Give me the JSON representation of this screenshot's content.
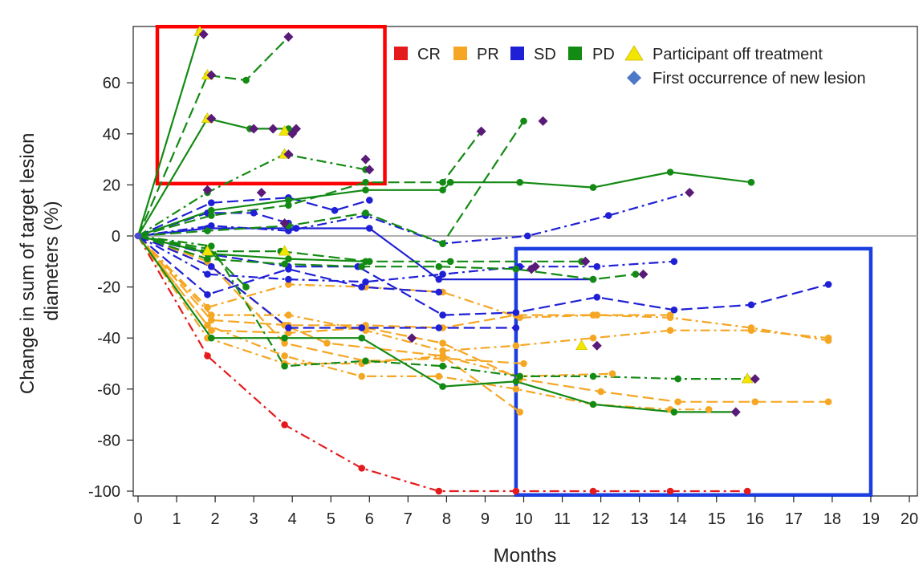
{
  "chart_data": {
    "type": "line",
    "xlabel": "Months",
    "ylabel_lines": [
      "Change in sum of target lesion",
      "diameters (%)"
    ],
    "xlim": [
      0,
      20
    ],
    "ylim": [
      -100,
      80
    ],
    "x_ticks": [
      "0",
      "1",
      "2",
      "3",
      "4",
      "5",
      "6",
      "7",
      "8",
      "9",
      "10",
      "11",
      "12",
      "13",
      "14",
      "15",
      "16",
      "17",
      "18",
      "19",
      "20"
    ],
    "y_ticks": [
      "60",
      "40",
      "20",
      "0",
      "-20",
      "-40",
      "-60",
      "-80",
      "-100"
    ],
    "reference_line_y": 0,
    "legend": {
      "placement": "top-right",
      "response_items": [
        {
          "label": "CR",
          "color": "#e41a1c"
        },
        {
          "label": "PR",
          "color": "#f5a623"
        },
        {
          "label": "SD",
          "color": "#1f1fd6"
        },
        {
          "label": "PD",
          "color": "#138a13"
        }
      ],
      "off_treatment_label": "Participant off treatment",
      "off_treatment_color": "#f2e600",
      "new_lesion_label": "First occurrence of new lesion",
      "new_lesion_color": "#4e79c7",
      "new_lesion_plot_color": "#5a1a78"
    },
    "highlight_boxes": [
      {
        "color": "#ff0000",
        "x_range": [
          0.5,
          6.4
        ],
        "y_range": [
          20.5,
          82
        ]
      },
      {
        "color": "#1a3ee0",
        "x_range": [
          9.8,
          19.0
        ],
        "y_range": [
          -5,
          -101.5
        ]
      }
    ],
    "series": [
      {
        "group": "CR",
        "dash": "dashdot",
        "points": [
          [
            0,
            0
          ],
          [
            1.8,
            -47
          ],
          [
            3.8,
            -74
          ],
          [
            5.8,
            -91
          ],
          [
            7.8,
            -100
          ],
          [
            9.8,
            -100
          ],
          [
            11.8,
            -100
          ],
          [
            13.8,
            -100
          ],
          [
            15.8,
            -100
          ]
        ]
      },
      {
        "group": "PR",
        "dash": "dashdot",
        "points": [
          [
            0,
            0
          ],
          [
            1.8,
            -35
          ],
          [
            3.8,
            -47
          ],
          [
            5.8,
            -55
          ],
          [
            7.8,
            -55
          ],
          [
            9.8,
            -60
          ],
          [
            11.8,
            -66
          ],
          [
            13.8,
            -68
          ],
          [
            14.8,
            -68
          ]
        ]
      },
      {
        "group": "PR",
        "dash": "dash",
        "points": [
          [
            0,
            0
          ],
          [
            1.9,
            -37
          ],
          [
            3.9,
            -38
          ],
          [
            5.9,
            -36
          ],
          [
            7.9,
            -42
          ],
          [
            9.9,
            -56
          ],
          [
            12.0,
            -61
          ],
          [
            14.0,
            -65
          ],
          [
            16.0,
            -65
          ],
          [
            17.9,
            -65
          ]
        ]
      },
      {
        "group": "PR",
        "dash": "dashdot",
        "points": [
          [
            0,
            0
          ],
          [
            1.8,
            -40
          ],
          [
            3.8,
            -50
          ],
          [
            5.8,
            -50
          ],
          [
            7.9,
            -47
          ],
          [
            9.9,
            -55
          ],
          [
            12.3,
            -54
          ]
        ]
      },
      {
        "group": "PR",
        "dash": "dash",
        "points": [
          [
            0,
            0
          ],
          [
            1.9,
            -33
          ],
          [
            3.9,
            -35
          ],
          [
            5.9,
            -35
          ],
          [
            7.9,
            -36
          ],
          [
            9.8,
            -31
          ],
          [
            11.8,
            -31
          ],
          [
            13.8,
            -31
          ]
        ]
      },
      {
        "group": "PR",
        "dash": "dashdot",
        "points": [
          [
            0,
            0
          ],
          [
            1.9,
            -31
          ],
          [
            3.9,
            -31
          ],
          [
            5.9,
            -37
          ],
          [
            7.9,
            -45
          ],
          [
            9.8,
            -43
          ],
          [
            11.8,
            -40
          ],
          [
            13.8,
            -37
          ],
          [
            15.9,
            -37
          ],
          [
            17.9,
            -40
          ]
        ]
      },
      {
        "group": "PR",
        "dash": "dashdot",
        "points": [
          [
            0,
            0
          ],
          [
            1.8,
            -28
          ],
          [
            3.9,
            -19
          ],
          [
            5.9,
            -20
          ],
          [
            7.9,
            -22
          ],
          [
            9.9,
            -32
          ],
          [
            11.9,
            -31
          ],
          [
            13.8,
            -32
          ],
          [
            15.9,
            -36
          ],
          [
            17.9,
            -41
          ]
        ]
      },
      {
        "group": "PR",
        "dash": "dash",
        "points": [
          [
            0,
            0
          ],
          [
            1.9,
            -12
          ],
          [
            3.8,
            -35
          ],
          [
            4.9,
            -42
          ],
          [
            7.9,
            -47
          ],
          [
            9.9,
            -69
          ]
        ]
      },
      {
        "group": "PR",
        "dash": "dash",
        "points": [
          [
            0,
            0
          ],
          [
            1.8,
            -10
          ],
          [
            3.8,
            -42
          ],
          [
            5.9,
            -49
          ],
          [
            7.9,
            -48
          ],
          [
            10.0,
            -50
          ]
        ]
      },
      {
        "group": "SD",
        "dash": "dash",
        "points": [
          [
            0,
            0
          ],
          [
            1.8,
            -7
          ],
          [
            3.9,
            -12
          ],
          [
            5.7,
            -12
          ],
          [
            7.9,
            -31
          ],
          [
            9.8,
            -30
          ],
          [
            11.9,
            -24
          ],
          [
            13.9,
            -29
          ],
          [
            15.9,
            -27
          ],
          [
            17.9,
            -19
          ]
        ]
      },
      {
        "group": "SD",
        "dash": "dash",
        "points": [
          [
            0,
            0
          ],
          [
            1.9,
            -12
          ],
          [
            3.9,
            -36
          ],
          [
            5.8,
            -36
          ],
          [
            7.8,
            -36
          ],
          [
            9.8,
            -36
          ]
        ]
      },
      {
        "group": "SD",
        "dash": "dashdot",
        "points": [
          [
            0,
            0
          ],
          [
            1.8,
            -15
          ],
          [
            3.9,
            -17
          ],
          [
            5.9,
            -18
          ],
          [
            7.9,
            -15
          ],
          [
            9.9,
            -12
          ],
          [
            11.9,
            -12
          ],
          [
            13.9,
            -10
          ]
        ]
      },
      {
        "group": "SD",
        "dash": "dash",
        "points": [
          [
            0,
            0
          ],
          [
            1.8,
            -23
          ],
          [
            3.9,
            -13
          ],
          [
            5.8,
            -20
          ],
          [
            7.8,
            -22
          ]
        ]
      },
      {
        "group": "SD",
        "dash": "dashdot",
        "points": [
          [
            0,
            0
          ],
          [
            1.9,
            4
          ],
          [
            3.9,
            2
          ],
          [
            5.9,
            8
          ],
          [
            7.9,
            -3
          ],
          [
            10.1,
            0
          ],
          [
            12.2,
            8
          ],
          [
            14.3,
            17
          ]
        ]
      },
      {
        "group": "SD",
        "dash": "solid",
        "points": [
          [
            0,
            0
          ],
          [
            1.8,
            3
          ],
          [
            3.9,
            3
          ],
          [
            6.0,
            3
          ],
          [
            7.8,
            -17
          ],
          [
            11.8,
            -17
          ]
        ]
      },
      {
        "group": "SD",
        "dash": "dash",
        "points": [
          [
            0,
            0
          ],
          [
            1.9,
            13
          ],
          [
            3.9,
            15
          ],
          [
            5.1,
            10
          ],
          [
            6.0,
            14
          ]
        ]
      },
      {
        "group": "SD",
        "dash": "dash",
        "points": [
          [
            0,
            0
          ],
          [
            1.8,
            9
          ],
          [
            3.0,
            9
          ],
          [
            3.9,
            5
          ],
          [
            4.1,
            3
          ]
        ]
      },
      {
        "group": "PD",
        "dash": "solid",
        "points": [
          [
            0,
            0
          ],
          [
            1.6,
            80
          ]
        ]
      },
      {
        "group": "PD",
        "dash": "dash",
        "points": [
          [
            0,
            0
          ],
          [
            1.8,
            63
          ],
          [
            2.8,
            61
          ],
          [
            3.9,
            78
          ]
        ]
      },
      {
        "group": "PD",
        "dash": "solid",
        "points": [
          [
            0,
            0
          ],
          [
            1.8,
            46
          ],
          [
            2.9,
            42
          ],
          [
            3.9,
            42
          ]
        ]
      },
      {
        "group": "PD",
        "dash": "dashdot",
        "points": [
          [
            0,
            0
          ],
          [
            1.8,
            17
          ],
          [
            3.8,
            32
          ],
          [
            5.9,
            26
          ]
        ]
      },
      {
        "group": "PD",
        "dash": "dash",
        "points": [
          [
            0,
            0
          ],
          [
            1.9,
            8
          ],
          [
            3.9,
            12
          ],
          [
            5.9,
            21
          ],
          [
            7.9,
            21
          ],
          [
            8.9,
            41
          ]
        ]
      },
      {
        "group": "PD",
        "dash": "solid",
        "points": [
          [
            0,
            0
          ],
          [
            1.9,
            10
          ],
          [
            3.9,
            14
          ],
          [
            5.9,
            18
          ],
          [
            7.9,
            18
          ],
          [
            8.1,
            21
          ],
          [
            9.9,
            21
          ],
          [
            11.8,
            19
          ],
          [
            13.8,
            25
          ],
          [
            15.9,
            21
          ]
        ]
      },
      {
        "group": "PD",
        "dash": "dash",
        "points": [
          [
            0,
            0
          ],
          [
            1.8,
            2
          ],
          [
            3.9,
            4
          ],
          [
            5.9,
            9
          ],
          [
            7.9,
            -3
          ],
          [
            10.0,
            45
          ]
        ]
      },
      {
        "group": "PD",
        "dash": "dashdot",
        "points": [
          [
            0,
            0
          ],
          [
            1.9,
            -4
          ],
          [
            3.8,
            -51
          ],
          [
            5.9,
            -49
          ],
          [
            7.9,
            -51
          ],
          [
            9.9,
            -55
          ],
          [
            11.8,
            -55
          ],
          [
            14.0,
            -56
          ],
          [
            15.8,
            -56
          ]
        ]
      },
      {
        "group": "PD",
        "dash": "solid",
        "points": [
          [
            0,
            0
          ],
          [
            1.9,
            -40
          ],
          [
            3.8,
            -40
          ],
          [
            5.8,
            -40
          ],
          [
            7.9,
            -59
          ],
          [
            9.8,
            -57
          ],
          [
            11.8,
            -66
          ],
          [
            13.9,
            -69
          ],
          [
            15.5,
            -69
          ]
        ]
      },
      {
        "group": "PD",
        "dash": "dash",
        "points": [
          [
            0,
            0
          ],
          [
            1.8,
            -9
          ],
          [
            3.8,
            -11
          ],
          [
            5.8,
            -12
          ],
          [
            7.8,
            -12
          ],
          [
            9.8,
            -13
          ],
          [
            11.8,
            -17
          ],
          [
            12.9,
            -15
          ]
        ]
      },
      {
        "group": "PD",
        "dash": "dash",
        "points": [
          [
            0,
            0
          ],
          [
            1.8,
            -6
          ],
          [
            3.7,
            -6
          ],
          [
            6.0,
            -10
          ],
          [
            8.1,
            -10
          ],
          [
            11.5,
            -10
          ]
        ]
      },
      {
        "group": "PD",
        "dash": "solid",
        "points": [
          [
            0,
            0
          ],
          [
            1.9,
            -7
          ],
          [
            3.9,
            -9
          ],
          [
            5.9,
            -10
          ]
        ]
      },
      {
        "group": "PD",
        "dash": "dash",
        "points": [
          [
            0,
            0
          ],
          [
            1.8,
            -5
          ],
          [
            2.8,
            -20
          ]
        ]
      }
    ],
    "off_treatment_points": [
      [
        1.6,
        80
      ],
      [
        1.8,
        63
      ],
      [
        1.8,
        46
      ],
      [
        3.8,
        41
      ],
      [
        3.8,
        32
      ],
      [
        1.8,
        -6
      ],
      [
        3.8,
        -6
      ],
      [
        11.5,
        -43
      ],
      [
        15.8,
        -56
      ]
    ],
    "new_lesion_points": [
      [
        1.7,
        79
      ],
      [
        1.9,
        63
      ],
      [
        1.9,
        46
      ],
      [
        3.0,
        42
      ],
      [
        3.5,
        42
      ],
      [
        3.2,
        17
      ],
      [
        3.9,
        78
      ],
      [
        3.9,
        32
      ],
      [
        4.0,
        40
      ],
      [
        4.1,
        42
      ],
      [
        5.9,
        30
      ],
      [
        6.0,
        26
      ],
      [
        1.8,
        18
      ],
      [
        3.8,
        5
      ],
      [
        8.9,
        41
      ],
      [
        10.5,
        45
      ],
      [
        14.3,
        17
      ],
      [
        7.1,
        -40
      ],
      [
        10.2,
        -13
      ],
      [
        10.3,
        -12
      ],
      [
        11.6,
        -10
      ],
      [
        13.1,
        -15
      ],
      [
        11.9,
        -43
      ],
      [
        15.5,
        -69
      ],
      [
        16.0,
        -56
      ]
    ]
  }
}
